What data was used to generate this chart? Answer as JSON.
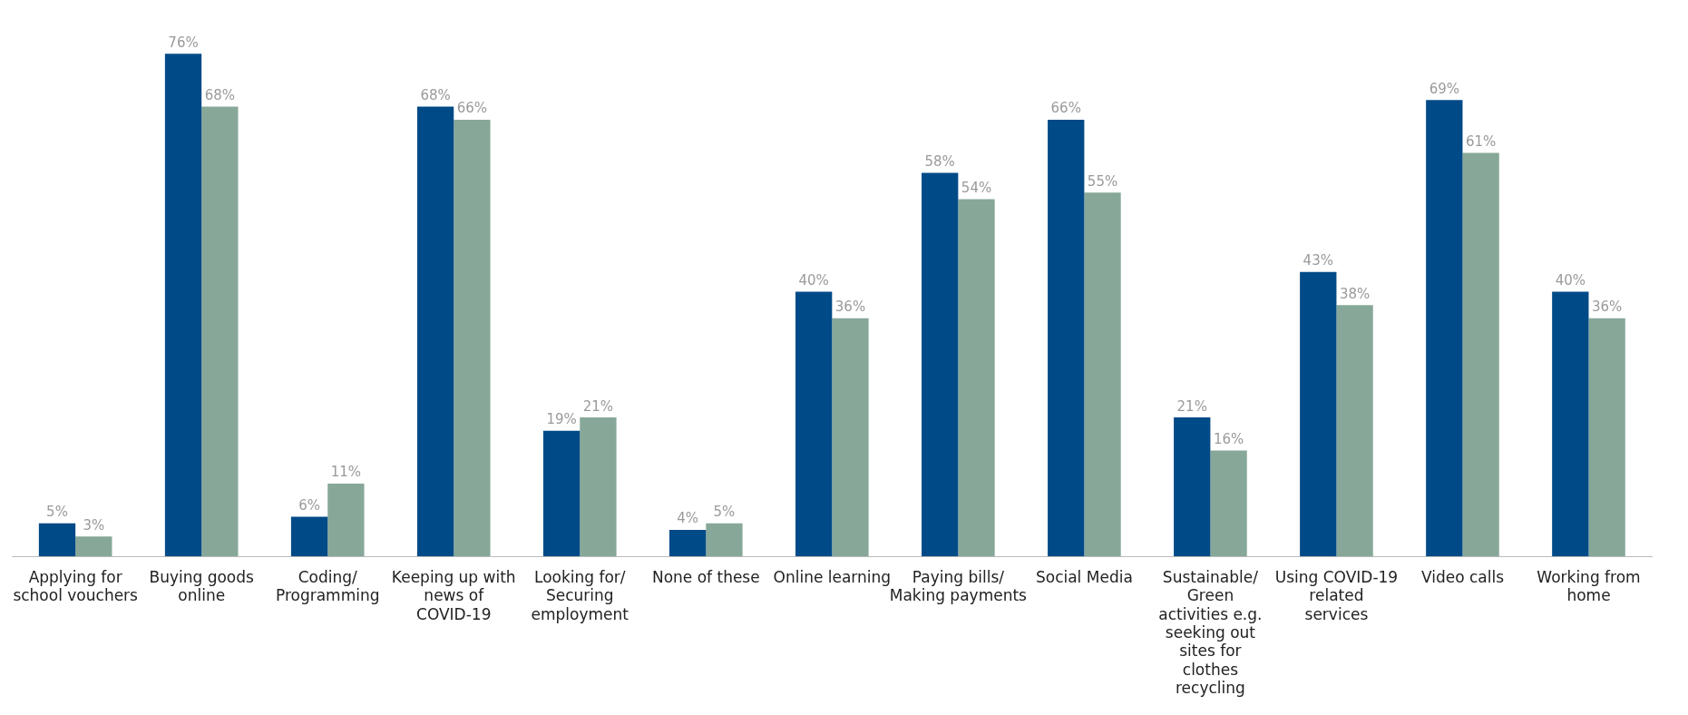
{
  "chart_data": {
    "type": "bar",
    "categories": [
      "Applying for school vouchers",
      "Buying goods online",
      "Coding/ Programming",
      "Keeping up with news of COVID-19",
      "Looking for/ Securing employment",
      "None of these",
      "Online learning",
      "Paying bills/ Making payments",
      "Social Media",
      "Sustainable/ Green activities e.g. seeking out sites for clothes recycling",
      "Using COVID-19 related services",
      "Video calls",
      "Working from home"
    ],
    "series": [
      {
        "color": "#004a87",
        "values": [
          5,
          76,
          6,
          68,
          19,
          4,
          40,
          58,
          66,
          21,
          43,
          69,
          40
        ],
        "value_labels": [
          "5%",
          "76%",
          "6%",
          "68%",
          "19%",
          "4%",
          "40%",
          "58%",
          "66%",
          "21%",
          "43%",
          "69%",
          "40%"
        ]
      },
      {
        "color": "#87a899",
        "values": [
          3,
          68,
          11,
          66,
          21,
          5,
          36,
          54,
          55,
          16,
          38,
          61,
          36
        ],
        "value_labels": [
          "3%",
          "68%",
          "11%",
          "66%",
          "21%",
          "5%",
          "36%",
          "54%",
          "55%",
          "16%",
          "38%",
          "61%",
          "36%"
        ]
      }
    ],
    "grid": false,
    "legend": false
  }
}
